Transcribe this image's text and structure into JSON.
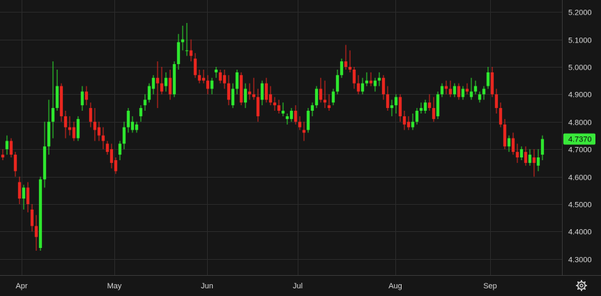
{
  "colors": {
    "background": "#161616",
    "grid": "#2b2b2b",
    "axis_text": "#d7d7d7",
    "up": "#2ee62e",
    "down": "#e8261f",
    "last_price_tag": "#39e83a"
  },
  "chart_data": {
    "type": "candlestick",
    "y_axis": {
      "position": "right",
      "ylim": [
        4.25,
        5.25
      ],
      "ticks": [
        "5.2000",
        "5.1000",
        "5.0000",
        "4.9000",
        "4.8000",
        "4.7000",
        "4.6000",
        "4.5000",
        "4.4000",
        "4.3000"
      ]
    },
    "x_axis": {
      "ticks": [
        "Apr",
        "May",
        "Jun",
        "Jul",
        "Aug",
        "Sep"
      ]
    },
    "last_price": {
      "value": 4.737,
      "label": "4.7370"
    },
    "grid": true,
    "candles": [
      [
        4.68,
        4.7,
        4.66,
        4.67
      ],
      [
        4.7,
        4.75,
        4.68,
        4.73
      ],
      [
        4.73,
        4.74,
        4.67,
        4.68
      ],
      [
        4.68,
        4.69,
        4.6,
        4.62
      ],
      [
        4.58,
        4.6,
        4.5,
        4.52
      ],
      [
        4.52,
        4.57,
        4.48,
        4.56
      ],
      [
        4.56,
        4.58,
        4.47,
        4.5
      ],
      [
        4.48,
        4.5,
        4.4,
        4.42
      ],
      [
        4.42,
        4.46,
        4.33,
        4.38
      ],
      [
        4.34,
        4.6,
        4.33,
        4.59
      ],
      [
        4.59,
        4.8,
        4.56,
        4.71
      ],
      [
        4.71,
        4.88,
        4.68,
        4.8
      ],
      [
        4.8,
        5.02,
        4.74,
        4.85
      ],
      [
        4.85,
        4.99,
        4.84,
        4.93
      ],
      [
        4.93,
        4.94,
        4.8,
        4.82
      ],
      [
        4.82,
        4.84,
        4.74,
        4.78
      ],
      [
        4.78,
        4.82,
        4.75,
        4.77
      ],
      [
        4.78,
        4.8,
        4.73,
        4.74
      ],
      [
        4.74,
        4.82,
        4.73,
        4.81
      ],
      [
        4.86,
        4.93,
        4.84,
        4.91
      ],
      [
        4.91,
        4.93,
        4.86,
        4.88
      ],
      [
        4.85,
        4.87,
        4.78,
        4.8
      ],
      [
        4.8,
        4.85,
        4.73,
        4.77
      ],
      [
        4.78,
        4.8,
        4.73,
        4.75
      ],
      [
        4.75,
        4.78,
        4.7,
        4.73
      ],
      [
        4.72,
        4.73,
        4.68,
        4.69
      ],
      [
        4.7,
        4.72,
        4.63,
        4.65
      ],
      [
        4.66,
        4.67,
        4.61,
        4.62
      ],
      [
        4.68,
        4.73,
        4.66,
        4.72
      ],
      [
        4.72,
        4.8,
        4.7,
        4.78
      ],
      [
        4.78,
        4.85,
        4.76,
        4.84
      ],
      [
        4.77,
        4.82,
        4.76,
        4.8
      ],
      [
        4.77,
        4.8,
        4.76,
        4.79
      ],
      [
        4.82,
        4.86,
        4.8,
        4.85
      ],
      [
        4.86,
        4.9,
        4.84,
        4.88
      ],
      [
        4.88,
        4.94,
        4.87,
        4.93
      ],
      [
        4.92,
        4.97,
        4.9,
        4.96
      ],
      [
        4.96,
        5.02,
        4.85,
        4.94
      ],
      [
        4.94,
        5.0,
        4.9,
        4.91
      ],
      [
        4.93,
        4.98,
        4.91,
        4.96
      ],
      [
        4.96,
        4.99,
        4.88,
        4.9
      ],
      [
        4.9,
        5.02,
        4.89,
        5.01
      ],
      [
        5.01,
        5.12,
        4.99,
        5.09
      ],
      [
        5.09,
        5.15,
        5.06,
        5.1
      ],
      [
        5.06,
        5.16,
        5.04,
        5.06
      ],
      [
        5.06,
        5.1,
        5.02,
        5.04
      ],
      [
        5.03,
        5.05,
        4.96,
        4.97
      ],
      [
        4.97,
        4.99,
        4.94,
        4.95
      ],
      [
        4.96,
        4.99,
        4.94,
        4.95
      ],
      [
        4.95,
        4.97,
        4.9,
        4.92
      ],
      [
        4.92,
        4.96,
        4.9,
        4.95
      ],
      [
        4.98,
        5.0,
        4.96,
        4.99
      ],
      [
        4.98,
        4.99,
        4.94,
        4.95
      ],
      [
        4.97,
        4.99,
        4.92,
        4.94
      ],
      [
        4.94,
        4.97,
        4.86,
        4.88
      ],
      [
        4.86,
        4.94,
        4.85,
        4.92
      ],
      [
        4.92,
        4.99,
        4.9,
        4.98
      ],
      [
        4.97,
        4.98,
        4.86,
        4.87
      ],
      [
        4.87,
        4.94,
        4.85,
        4.92
      ],
      [
        4.91,
        4.94,
        4.88,
        4.9
      ],
      [
        4.9,
        4.96,
        4.88,
        4.89
      ],
      [
        4.89,
        4.92,
        4.8,
        4.82
      ],
      [
        4.88,
        4.95,
        4.86,
        4.94
      ],
      [
        4.94,
        4.96,
        4.87,
        4.88
      ],
      [
        4.9,
        4.93,
        4.86,
        4.87
      ],
      [
        4.87,
        4.89,
        4.84,
        4.86
      ],
      [
        4.86,
        4.88,
        4.83,
        4.84
      ],
      [
        4.83,
        4.87,
        4.82,
        4.84
      ],
      [
        4.81,
        4.83,
        4.79,
        4.82
      ],
      [
        4.81,
        4.85,
        4.8,
        4.84
      ],
      [
        4.84,
        4.86,
        4.79,
        4.8
      ],
      [
        4.8,
        4.82,
        4.77,
        4.78
      ],
      [
        4.77,
        4.8,
        4.73,
        4.76
      ],
      [
        4.77,
        4.85,
        4.76,
        4.84
      ],
      [
        4.84,
        4.87,
        4.82,
        4.86
      ],
      [
        4.86,
        4.93,
        4.85,
        4.92
      ],
      [
        4.92,
        4.96,
        4.87,
        4.88
      ],
      [
        4.88,
        4.95,
        4.85,
        4.87
      ],
      [
        4.86,
        4.9,
        4.84,
        4.85
      ],
      [
        4.87,
        4.92,
        4.86,
        4.91
      ],
      [
        4.91,
        4.99,
        4.9,
        4.97
      ],
      [
        4.97,
        5.03,
        4.96,
        5.02
      ],
      [
        5.02,
        5.08,
        4.99,
        5.0
      ],
      [
        5.0,
        5.06,
        4.98,
        4.99
      ],
      [
        4.99,
        5.0,
        4.92,
        4.94
      ],
      [
        4.94,
        4.97,
        4.9,
        4.91
      ],
      [
        4.91,
        4.96,
        4.9,
        4.94
      ],
      [
        4.94,
        4.98,
        4.93,
        4.95
      ],
      [
        4.95,
        4.98,
        4.93,
        4.94
      ],
      [
        4.93,
        4.96,
        4.91,
        4.95
      ],
      [
        4.95,
        4.98,
        4.93,
        4.96
      ],
      [
        4.96,
        4.97,
        4.88,
        4.9
      ],
      [
        4.9,
        4.93,
        4.84,
        4.85
      ],
      [
        4.85,
        4.88,
        4.82,
        4.86
      ],
      [
        4.86,
        4.9,
        4.83,
        4.89
      ],
      [
        4.89,
        4.9,
        4.8,
        4.82
      ],
      [
        4.82,
        4.84,
        4.77,
        4.79
      ],
      [
        4.8,
        4.82,
        4.77,
        4.78
      ],
      [
        4.78,
        4.83,
        4.77,
        4.8
      ],
      [
        4.8,
        4.85,
        4.79,
        4.84
      ],
      [
        4.84,
        4.87,
        4.83,
        4.85
      ],
      [
        4.84,
        4.88,
        4.83,
        4.87
      ],
      [
        4.87,
        4.9,
        4.84,
        4.85
      ],
      [
        4.85,
        4.89,
        4.8,
        4.81
      ],
      [
        4.82,
        4.91,
        4.81,
        4.9
      ],
      [
        4.9,
        4.94,
        4.89,
        4.93
      ],
      [
        4.93,
        4.95,
        4.9,
        4.92
      ],
      [
        4.92,
        4.95,
        4.89,
        4.9
      ],
      [
        4.9,
        4.94,
        4.89,
        4.93
      ],
      [
        4.93,
        4.94,
        4.88,
        4.89
      ],
      [
        4.89,
        4.93,
        4.88,
        4.92
      ],
      [
        4.92,
        4.94,
        4.9,
        4.91
      ],
      [
        4.89,
        4.96,
        4.88,
        4.91
      ],
      [
        4.91,
        4.95,
        4.9,
        4.93
      ],
      [
        4.88,
        4.91,
        4.87,
        4.9
      ],
      [
        4.9,
        4.93,
        4.88,
        4.92
      ],
      [
        4.93,
        5.0,
        4.92,
        4.98
      ],
      [
        4.98,
        5.0,
        4.89,
        4.9
      ],
      [
        4.9,
        4.92,
        4.83,
        4.85
      ],
      [
        4.85,
        4.87,
        4.78,
        4.79
      ],
      [
        4.79,
        4.81,
        4.7,
        4.71
      ],
      [
        4.71,
        4.75,
        4.69,
        4.74
      ],
      [
        4.74,
        4.76,
        4.68,
        4.69
      ],
      [
        4.69,
        4.72,
        4.65,
        4.67
      ],
      [
        4.67,
        4.71,
        4.66,
        4.7
      ],
      [
        4.69,
        4.71,
        4.64,
        4.65
      ],
      [
        4.65,
        4.7,
        4.64,
        4.68
      ],
      [
        4.67,
        4.7,
        4.6,
        4.65
      ],
      [
        4.64,
        4.7,
        4.62,
        4.67
      ],
      [
        4.68,
        4.75,
        4.66,
        4.737
      ]
    ]
  },
  "settings": {
    "icon": "gear-icon"
  }
}
